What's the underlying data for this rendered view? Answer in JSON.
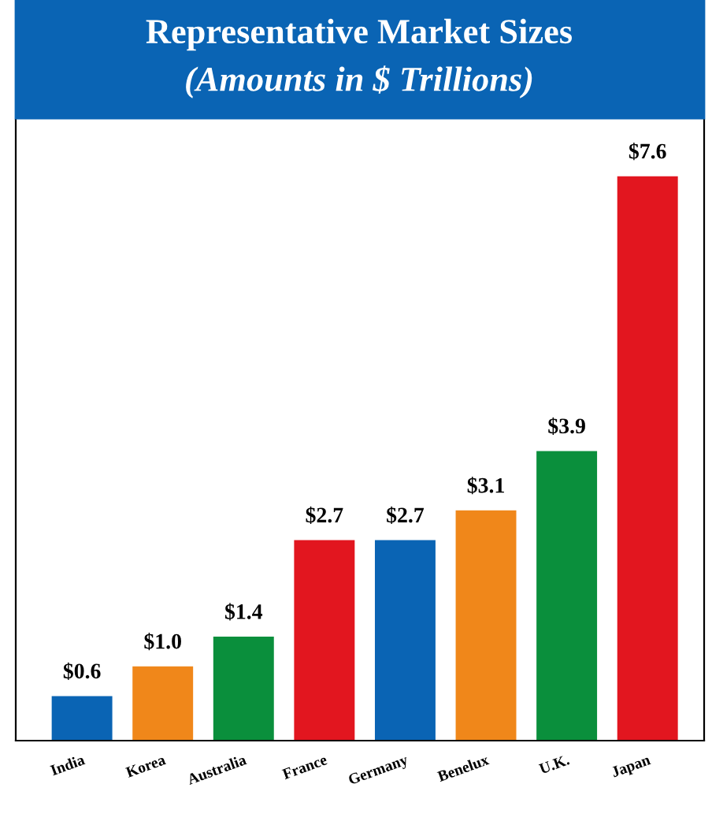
{
  "chart_data": {
    "type": "bar",
    "title": "Representative Market Sizes",
    "subtitle": "(Amounts in $ Trillions)",
    "categories": [
      "India",
      "Korea",
      "Australia",
      "France",
      "Germany",
      "Benelux",
      "U.K.",
      "Japan"
    ],
    "values": [
      0.6,
      1.0,
      1.4,
      2.7,
      2.7,
      3.1,
      3.9,
      7.6
    ],
    "colors": [
      "#0a64b4",
      "#f0871a",
      "#0a8f3c",
      "#e2161f",
      "#0a64b4",
      "#f0871a",
      "#0a8f3c",
      "#e2161f"
    ],
    "value_labels": [
      "$0.6",
      "$1.0",
      "$1.4",
      "$2.7",
      "$2.7",
      "$3.1",
      "$3.9",
      "$7.6"
    ],
    "grid": false,
    "legend": false
  }
}
